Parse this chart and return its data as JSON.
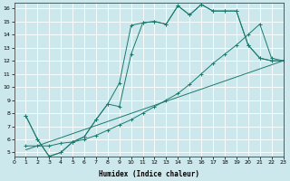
{
  "xlabel": "Humidex (Indice chaleur)",
  "xlim": [
    0,
    23
  ],
  "ylim": [
    4.7,
    16.4
  ],
  "xticks": [
    0,
    1,
    2,
    3,
    4,
    5,
    6,
    7,
    8,
    9,
    10,
    11,
    12,
    13,
    14,
    15,
    16,
    17,
    18,
    19,
    20,
    21,
    22,
    23
  ],
  "yticks": [
    5,
    6,
    7,
    8,
    9,
    10,
    11,
    12,
    13,
    14,
    15,
    16
  ],
  "bg_color": "#cce8ec",
  "line_color": "#1a7a6e",
  "grid_color": "#ffffff",
  "line1_x": [
    1,
    2,
    3,
    4,
    5,
    6,
    7,
    8,
    9,
    10,
    11,
    12,
    13,
    14,
    15,
    16,
    17,
    18,
    19,
    20,
    21,
    22,
    23
  ],
  "line1_y": [
    7.8,
    6.0,
    4.7,
    5.0,
    5.8,
    6.2,
    7.5,
    8.7,
    10.3,
    14.7,
    14.9,
    15.0,
    14.8,
    16.2,
    15.5,
    16.3,
    15.8,
    15.8,
    15.8,
    13.2,
    12.2,
    12.0,
    12.0
  ],
  "line2_x": [
    1,
    2,
    3,
    4,
    5,
    6,
    7,
    8,
    9,
    10,
    11,
    12,
    13,
    14,
    15,
    16,
    17,
    18,
    19,
    20,
    21,
    22,
    23
  ],
  "line2_y": [
    7.8,
    6.0,
    4.7,
    5.0,
    5.8,
    6.2,
    7.5,
    8.7,
    8.5,
    12.5,
    14.9,
    15.0,
    14.8,
    16.2,
    15.5,
    16.3,
    15.8,
    15.8,
    15.8,
    13.2,
    12.2,
    12.0,
    12.0
  ],
  "line3_x": [
    1,
    2,
    3,
    4,
    5,
    6,
    7,
    8,
    9,
    10,
    11,
    12,
    13,
    14,
    15,
    16,
    17,
    18,
    19,
    20,
    21,
    22,
    23
  ],
  "line3_y": [
    5.5,
    5.5,
    5.5,
    5.7,
    5.8,
    6.0,
    6.3,
    6.7,
    7.1,
    7.5,
    8.0,
    8.5,
    9.0,
    9.5,
    10.2,
    11.0,
    11.8,
    12.5,
    13.2,
    14.0,
    14.8,
    12.2,
    12.0
  ],
  "line4_x": [
    1,
    23
  ],
  "line4_y": [
    5.2,
    12.0
  ]
}
